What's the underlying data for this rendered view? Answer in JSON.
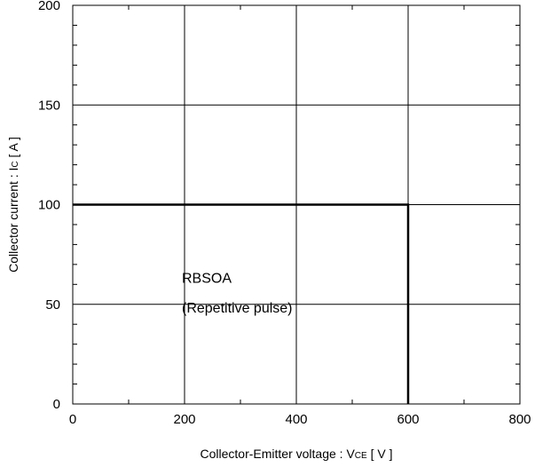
{
  "chart_data": {
    "type": "line",
    "title": "",
    "xlabel": {
      "main": "Collector-Emitter voltage  :  V",
      "sub": "CE",
      "unit": " [ V ]"
    },
    "ylabel": {
      "main": "Collector current : I",
      "sub": "C",
      "unit": " [ A ]"
    },
    "xlim": [
      0,
      800
    ],
    "ylim": [
      0,
      200
    ],
    "xticks": [
      0,
      200,
      400,
      600,
      800
    ],
    "yticks": [
      0,
      50,
      100,
      150,
      200
    ],
    "xtick_labels": [
      "0",
      "200",
      "400",
      "600",
      "800"
    ],
    "ytick_labels": [
      "0",
      "50",
      "100",
      "150",
      "200"
    ],
    "x_minor_step": 100,
    "y_minor_step": 10,
    "grid": true,
    "series": [
      {
        "x": [
          0,
          600,
          600
        ],
        "y": [
          100,
          100,
          0
        ]
      }
    ],
    "annotations": [
      {
        "text": "RBSOA",
        "x": 200,
        "y": 63
      },
      {
        "text": "(Repetitive pulse)",
        "x": 200,
        "y": 48
      }
    ]
  }
}
